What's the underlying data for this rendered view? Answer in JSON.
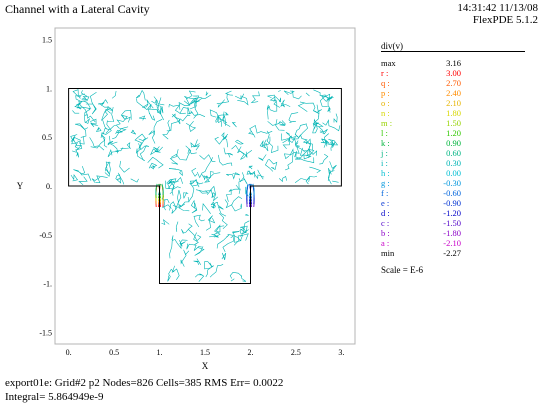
{
  "header": {
    "title": "Channel with a Lateral Cavity",
    "timestamp": "14:31:42 11/13/08",
    "version": "FlexPDE 5.1.2"
  },
  "footer": {
    "line1": "export01e:  Grid#2  p2  Nodes=826 Cells=385 RMS Err= 0.0022",
    "line2": "Integral=  5.864949e-9"
  },
  "legend": {
    "title": "div(v)",
    "scale_note": "Scale = E-6",
    "items": [
      {
        "label": "max",
        "value": "3.16",
        "color": "#000000"
      },
      {
        "label": "r :",
        "value": "3.00",
        "color": "#ff0000"
      },
      {
        "label": "q :",
        "value": "2.70",
        "color": "#ff5a00"
      },
      {
        "label": "p :",
        "value": "2.40",
        "color": "#ff8c00"
      },
      {
        "label": "o :",
        "value": "2.10",
        "color": "#e6b400"
      },
      {
        "label": "n :",
        "value": "1.80",
        "color": "#d7d700"
      },
      {
        "label": "m :",
        "value": "1.50",
        "color": "#96d200"
      },
      {
        "label": "l :",
        "value": "1.20",
        "color": "#32c800"
      },
      {
        "label": "k :",
        "value": "0.90",
        "color": "#00b43c"
      },
      {
        "label": "j :",
        "value": "0.60",
        "color": "#00b482"
      },
      {
        "label": "i :",
        "value": "0.30",
        "color": "#00b4b4"
      },
      {
        "label": "h :",
        "value": "0.00",
        "color": "#00bed2"
      },
      {
        "label": "g :",
        "value": "-0.30",
        "color": "#0096dc"
      },
      {
        "label": "f :",
        "value": "-0.60",
        "color": "#0064dc"
      },
      {
        "label": "e :",
        "value": "-0.90",
        "color": "#0032d2"
      },
      {
        "label": "d :",
        "value": "-1.20",
        "color": "#0000c8"
      },
      {
        "label": "c :",
        "value": "-1.50",
        "color": "#5000c8"
      },
      {
        "label": "b :",
        "value": "-1.80",
        "color": "#8c00c8"
      },
      {
        "label": "a :",
        "value": "-2.10",
        "color": "#c800c8"
      },
      {
        "label": "min",
        "value": "-2.27",
        "color": "#000000"
      }
    ]
  },
  "chart_data": {
    "type": "contour",
    "xlabel": "X",
    "ylabel": "Y",
    "xlim": [
      -0.15,
      3.15
    ],
    "ylim": [
      -1.62,
      1.62
    ],
    "xticks": [
      "0.",
      "0.5",
      "1.",
      "1.5",
      "2.",
      "2.5",
      "3."
    ],
    "xtick_values": [
      0,
      0.5,
      1,
      1.5,
      2,
      2.5,
      3
    ],
    "yticks": [
      "1.5",
      "1.",
      "0.5",
      "0.",
      "-0.5",
      "-1.",
      "-1.5"
    ],
    "ytick_values": [
      1.5,
      1,
      0.5,
      0,
      -0.5,
      -1,
      -1.5
    ],
    "domain_outline": [
      [
        0,
        0
      ],
      [
        0,
        1
      ],
      [
        3,
        1
      ],
      [
        3,
        0
      ],
      [
        2,
        0
      ],
      [
        2,
        -1
      ],
      [
        1,
        -1
      ],
      [
        1,
        0
      ]
    ],
    "contour_fill": "#00b4b4",
    "hot_spots": [
      {
        "x": 1.0,
        "y": 0.0,
        "colors": [
          "#ff0000",
          "#ff8c00",
          "#d7d700",
          "#32c800",
          "#00b482"
        ]
      },
      {
        "x": 2.0,
        "y": 0.0,
        "colors": [
          "#5000c8",
          "#0000c8",
          "#0032d2",
          "#0064dc",
          "#0096dc"
        ]
      }
    ]
  }
}
